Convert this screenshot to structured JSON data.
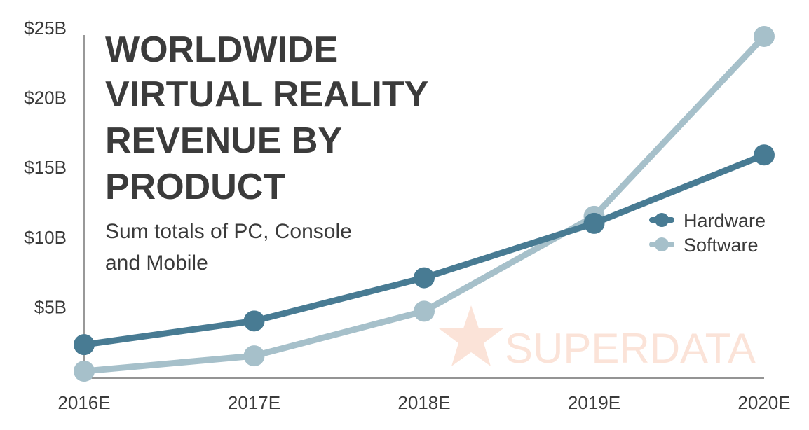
{
  "chart_data": {
    "type": "line",
    "title_lines": [
      "WORLDWIDE",
      "VIRTUAL REALITY",
      "REVENUE BY",
      "PRODUCT"
    ],
    "subtitle_lines": [
      "Sum totals of PC, Console",
      "and Mobile"
    ],
    "categories": [
      "2016E",
      "2017E",
      "2018E",
      "2019E",
      "2020E"
    ],
    "y_ticks": [
      {
        "value": 5,
        "label": "$5B"
      },
      {
        "value": 10,
        "label": "$10B"
      },
      {
        "value": 15,
        "label": "$15B"
      },
      {
        "value": 20,
        "label": "$20B"
      },
      {
        "value": 25,
        "label": "$25B"
      }
    ],
    "ylim": [
      0,
      25
    ],
    "xlabel": "",
    "ylabel": "",
    "grid": false,
    "legend_position": "right",
    "series": [
      {
        "name": "Hardware",
        "color": "#487b93",
        "values": [
          2.3,
          4.0,
          7.1,
          11.0,
          15.9
        ]
      },
      {
        "name": "Software",
        "color": "#a6c0ca",
        "values": [
          0.4,
          1.5,
          4.7,
          11.5,
          24.4
        ]
      }
    ],
    "watermark": "SUPERDATA",
    "watermark_color": "#fbe3d8"
  }
}
